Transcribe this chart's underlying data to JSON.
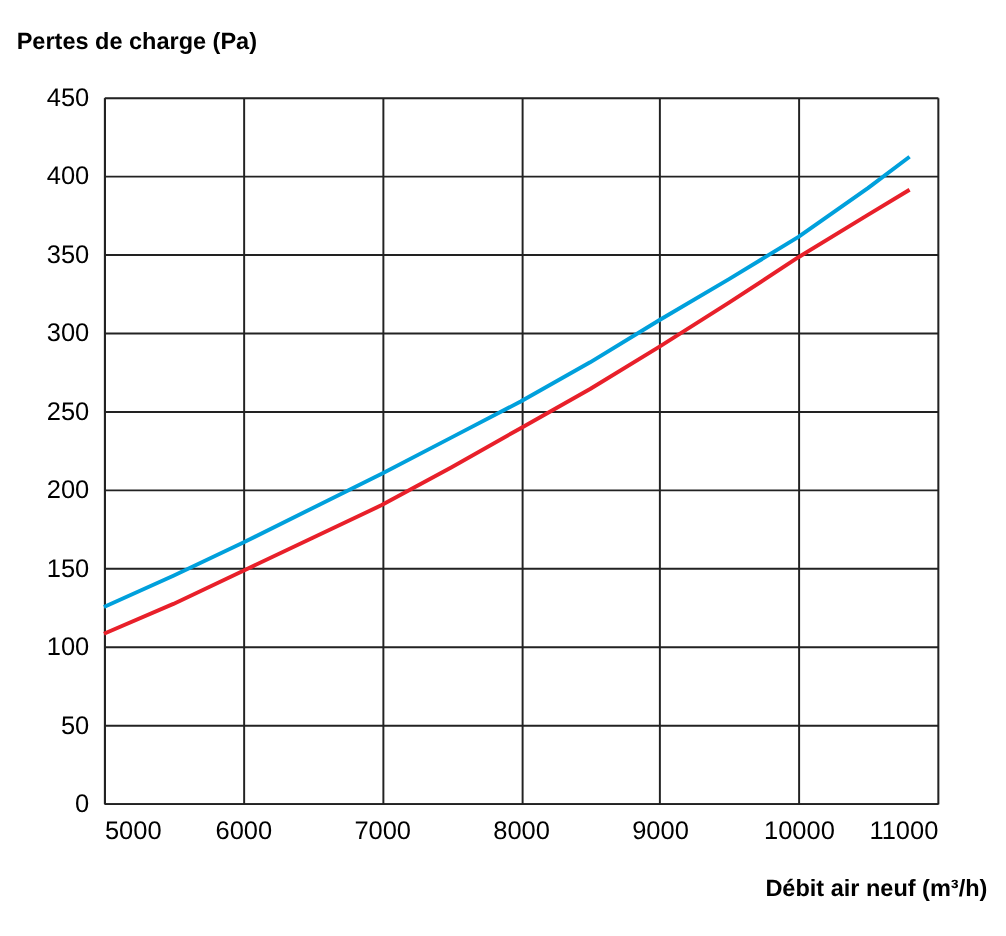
{
  "chart_data": {
    "type": "line",
    "xlabel": "Débit air neuf (m³/h)",
    "ylabel": "Pertes de charge (Pa)",
    "xlim": [
      5000,
      11000
    ],
    "xticks": [
      5000,
      6000,
      7000,
      8000,
      9000,
      10000,
      11000
    ],
    "ylim": [
      0,
      450
    ],
    "yticks": [
      0,
      50,
      100,
      150,
      200,
      250,
      300,
      350,
      400,
      450
    ],
    "grid": true,
    "legend": false,
    "marker": "none",
    "line_style": "solid",
    "x": [
      5000,
      5500,
      6000,
      6500,
      7000,
      7500,
      8000,
      8500,
      9000,
      9500,
      10000,
      10500,
      10800
    ],
    "series": [
      {
        "color": "#00a0dc",
        "values": [
          125,
          145,
          166,
          188,
          210,
          233,
          256,
          281,
          308,
          334,
          361,
          392,
          412
        ]
      },
      {
        "color": "#e8202a",
        "values": [
          108,
          127,
          148,
          169,
          190,
          214,
          239,
          264,
          291,
          319,
          348,
          375,
          391
        ]
      }
    ]
  }
}
